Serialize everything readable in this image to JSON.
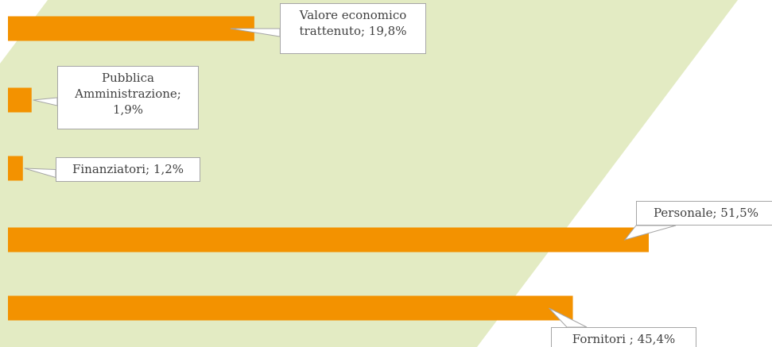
{
  "chart_data": {
    "type": "bar",
    "orientation": "horizontal",
    "color": "#f39200",
    "values": [
      19.8,
      1.9,
      1.2,
      51.5,
      45.4
    ],
    "value_labels": [
      "Valore economico trattenuto; 19,8%",
      "Pubblica Amministrazione; 1,9%",
      "Finanziatori; 1,2%",
      "Personale; 51,5%",
      "Fornitori  ; 45,4%"
    ]
  }
}
